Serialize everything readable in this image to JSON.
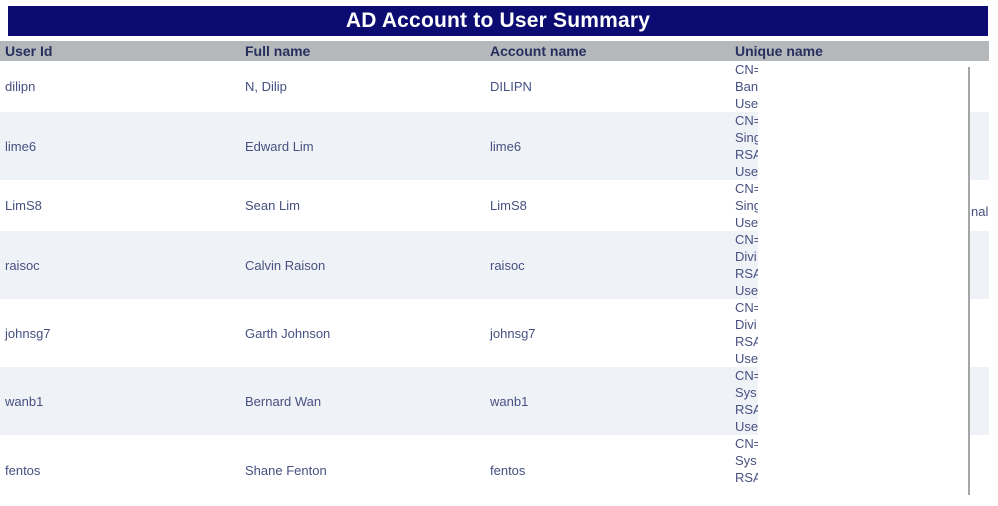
{
  "title": "AD Account to User Summary",
  "colors": {
    "title-bg": "#0b0b72",
    "title-fg": "#ffffff",
    "header-bg": "#b5b8bb",
    "header-fg": "#262f5e",
    "cell-fg": "#475080",
    "stripe-bg": "#eff3f8",
    "overlay-edge": "#a6a6a6"
  },
  "table": {
    "columns": [
      "User Id",
      "Full name",
      "Account name",
      "Unique name"
    ],
    "rows": [
      {
        "user_id": "dilipn",
        "full_name": "N, Dilip",
        "account_name": "DILIPN",
        "unique_name_lines": [
          "CN=",
          "Ban",
          "Use"
        ]
      },
      {
        "user_id": "lime6",
        "full_name": "Edward Lim",
        "account_name": "lime6",
        "unique_name_lines": [
          "CN=",
          "Sing",
          "RSA",
          "Use"
        ]
      },
      {
        "user_id": "LimS8",
        "full_name": "Sean Lim",
        "account_name": "LimS8",
        "unique_name_lines": [
          "CN=",
          "Sing",
          "Use"
        ],
        "right_fragment": "nal"
      },
      {
        "user_id": "raisoc",
        "full_name": "Calvin Raison",
        "account_name": "raisoc",
        "unique_name_lines": [
          "CN=",
          "Divi",
          "RSA",
          "Use"
        ]
      },
      {
        "user_id": "johnsg7",
        "full_name": "Garth Johnson",
        "account_name": "johnsg7",
        "unique_name_lines": [
          "CN=",
          "Divi",
          "RSA",
          "Use"
        ]
      },
      {
        "user_id": "wanb1",
        "full_name": "Bernard Wan",
        "account_name": "wanb1",
        "unique_name_lines": [
          "CN=",
          "Sys",
          "RSA",
          "Use"
        ]
      },
      {
        "user_id": "fentos",
        "full_name": "Shane Fenton",
        "account_name": "fentos",
        "unique_name_lines": [
          "CN=",
          "Sys",
          "RSA"
        ]
      }
    ]
  }
}
